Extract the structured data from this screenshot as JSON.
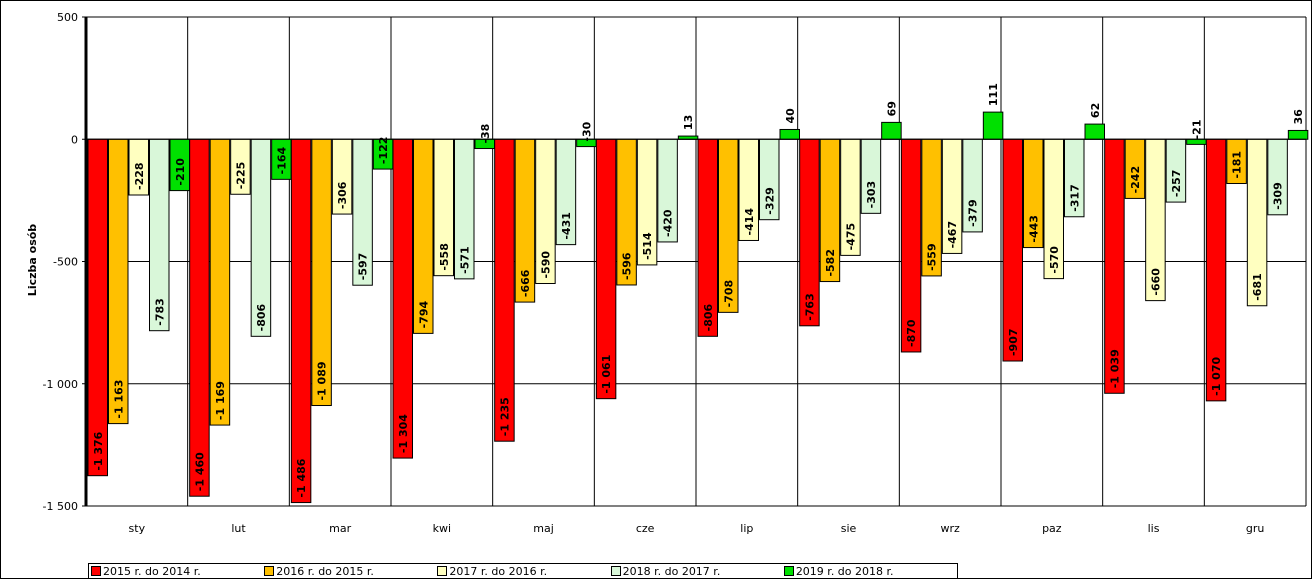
{
  "chart_data": {
    "type": "bar",
    "title": "",
    "xlabel": "",
    "ylabel": "Liczba osób",
    "ylim": [
      -1500,
      500
    ],
    "yticks": [
      500,
      0,
      -500,
      -1000,
      -1500
    ],
    "ytick_labels": [
      "500",
      "0",
      "-500",
      "-1 000",
      "-1 500"
    ],
    "grid": true,
    "legend_position": "bottom",
    "categories": [
      "sty",
      "lut",
      "mar",
      "kwi",
      "maj",
      "cze",
      "lip",
      "sie",
      "wrz",
      "paz",
      "lis",
      "gru"
    ],
    "series": [
      {
        "name": "2015 r. do 2014 r.",
        "color": "#ff0000",
        "values": [
          -1376,
          -1460,
          -1486,
          -1304,
          -1235,
          -1061,
          -806,
          -763,
          -870,
          -907,
          -1039,
          -1070
        ],
        "labels": [
          "-1 376",
          "-1 460",
          "-1 486",
          "-1 304",
          "-1 235",
          "-1 061",
          "-806",
          "-763",
          "-870",
          "-907",
          "-1 039",
          "-1 070"
        ]
      },
      {
        "name": "2016 r. do 2015 r.",
        "color": "#ffc000",
        "values": [
          -1163,
          -1169,
          -1089,
          -794,
          -666,
          -596,
          -708,
          -582,
          -559,
          -443,
          -242,
          -181
        ],
        "labels": [
          "-1 163",
          "-1 169",
          "-1 089",
          "-794",
          "-666",
          "-596",
          "-708",
          "-582",
          "-559",
          "-443",
          "-242",
          "-181"
        ]
      },
      {
        "name": "2017 r. do 2016 r.",
        "color": "#ffffc0",
        "values": [
          -228,
          -225,
          -306,
          -558,
          -590,
          -514,
          -414,
          -475,
          -467,
          -570,
          -660,
          -681
        ],
        "labels": [
          "-228",
          "-225",
          "-306",
          "-558",
          "-590",
          "-514",
          "-414",
          "-475",
          "-467",
          "-570",
          "-660",
          "-681"
        ]
      },
      {
        "name": "2018 r. do 2017 r.",
        "color": "#d9f7d9",
        "values": [
          -783,
          -806,
          -597,
          -571,
          -431,
          -420,
          -329,
          -303,
          -379,
          -317,
          -257,
          -309
        ],
        "labels": [
          "-783",
          "-806",
          "-597",
          "-571",
          "-431",
          "-420",
          "-329",
          "-303",
          "-379",
          "-317",
          "-257",
          "-309"
        ]
      },
      {
        "name": "2019 r. do 2018 r.",
        "color": "#00e000",
        "values": [
          -210,
          -164,
          -122,
          -38,
          -30,
          13,
          40,
          69,
          111,
          62,
          -21,
          36
        ],
        "labels": [
          "-210",
          "-164",
          "-122",
          "-38",
          "-30",
          "13",
          "40",
          "69",
          "111",
          "62",
          "-21",
          "36"
        ]
      }
    ]
  }
}
